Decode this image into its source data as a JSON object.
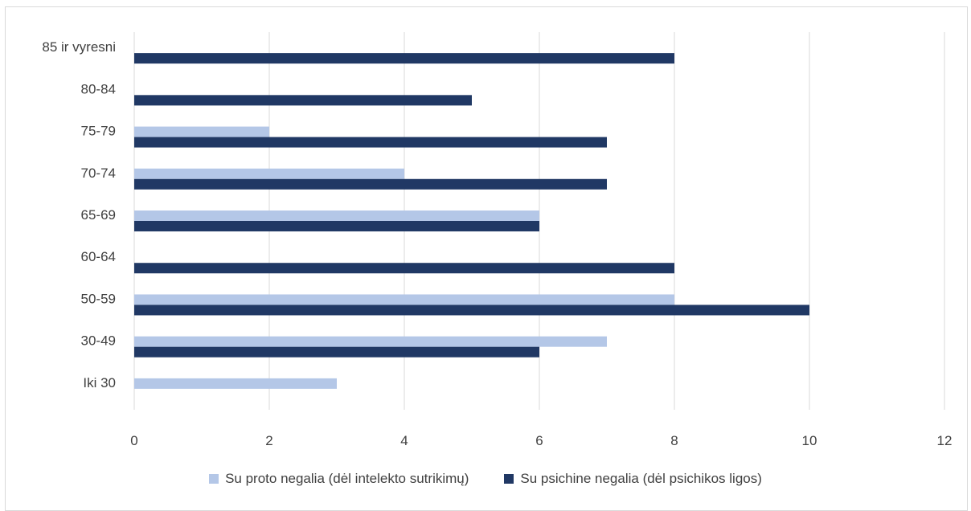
{
  "chart_data": {
    "type": "bar",
    "orientation": "horizontal",
    "categories": [
      "Iki 30",
      "30-49",
      "50-59",
      "60-64",
      "65-69",
      "70-74",
      "75-79",
      "80-84",
      "85 ir vyresni"
    ],
    "series": [
      {
        "name": "Su proto negalia (dėl intelekto sutrikimų)",
        "color": "#b4c7e7",
        "values": [
          3,
          7,
          8,
          0,
          6,
          4,
          2,
          0,
          0
        ]
      },
      {
        "name": "Su psichine negalia (dėl psichikos ligos)",
        "color": "#203864",
        "values": [
          0,
          6,
          10,
          8,
          6,
          7,
          7,
          5,
          8
        ]
      }
    ],
    "x_ticks": [
      "0",
      "2",
      "4",
      "6",
      "8",
      "10",
      "12"
    ],
    "xlim": [
      0,
      12
    ],
    "grid": "vertical",
    "legend_position": "bottom"
  }
}
